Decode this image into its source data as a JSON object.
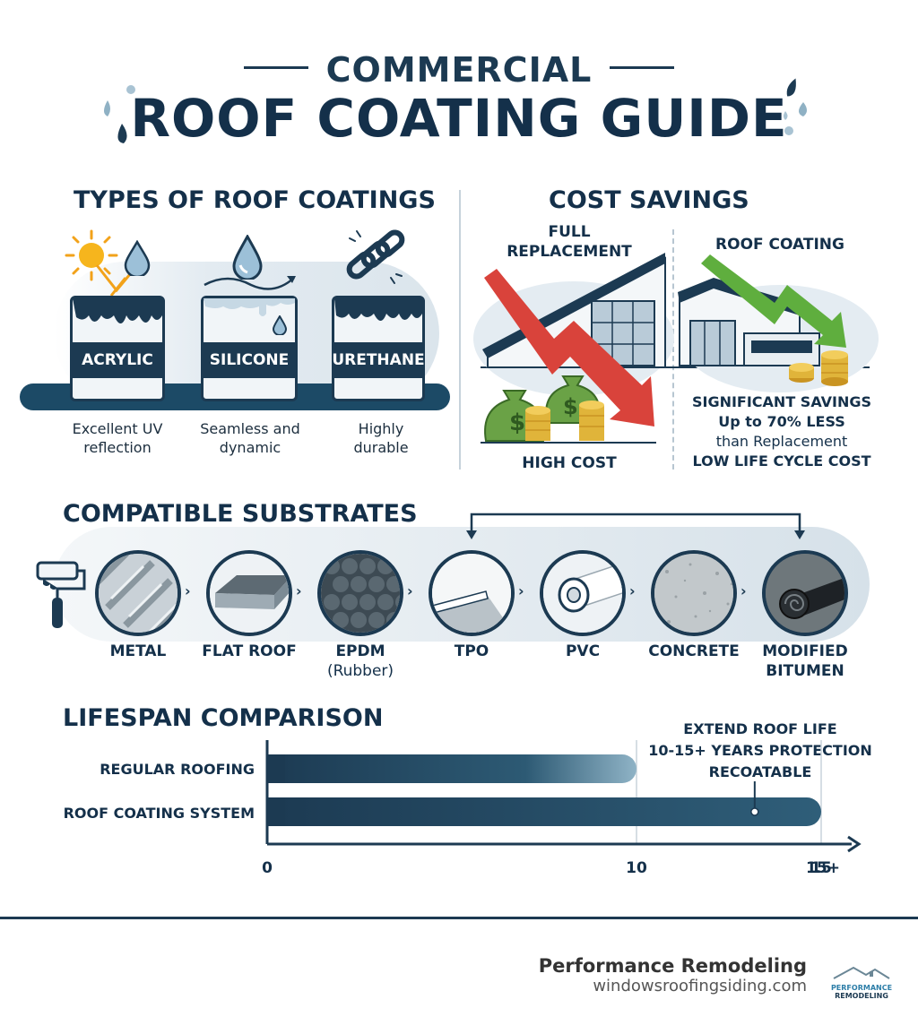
{
  "title": {
    "line1": "COMMERCIAL",
    "line2": "ROOF COATING GUIDE"
  },
  "types_section": {
    "heading": "TYPES OF ROOF COATINGS",
    "items": [
      {
        "label": "ACRYLIC",
        "caption_line1": "Excellent UV",
        "caption_line2": "reflection",
        "icon": "sun-icon"
      },
      {
        "label": "SILICONE",
        "caption_line1": "Seamless and",
        "caption_line2": "dynamic",
        "icon": "water-drop-icon"
      },
      {
        "label": "URETHANE",
        "caption_line1": "Highly",
        "caption_line2": "durable",
        "icon": "chain-link-icon"
      }
    ]
  },
  "cost_section": {
    "heading": "COST SAVINGS",
    "left_title_line1": "FULL",
    "left_title_line2": "REPLACEMENT",
    "left_caption": "HIGH COST",
    "right_title": "ROOF COATING",
    "right_line1": "SIGNIFICANT SAVINGS",
    "right_line2": "Up to 70% LESS",
    "right_line3": "than Replacement",
    "right_line4": "LOW LIFE CYCLE COST"
  },
  "substrates_section": {
    "heading": "COMPATIBLE SUBSTRATES",
    "items": [
      {
        "label": "METAL",
        "label2": ""
      },
      {
        "label": "FLAT ROOF",
        "label2": ""
      },
      {
        "label": "EPDM",
        "label2": "(Rubber)"
      },
      {
        "label": "TPO",
        "label2": ""
      },
      {
        "label": "PVC",
        "label2": ""
      },
      {
        "label": "CONCRETE",
        "label2": ""
      },
      {
        "label": "MODIFIED",
        "label2": "BITUMEN"
      }
    ]
  },
  "lifespan_section": {
    "heading": "LIFESPAN COMPARISON",
    "annotation_line1": "EXTEND ROOF LIFE",
    "annotation_line2": "10-15+ YEARS PROTECTION",
    "annotation_line3": "RECOATABLE"
  },
  "chart_data": {
    "type": "bar",
    "orientation": "horizontal",
    "categories": [
      "REGULAR ROOFING",
      "ROOF COATING SYSTEM"
    ],
    "values": [
      10,
      15
    ],
    "tick_labels": [
      "0",
      "10",
      "15",
      "15+"
    ],
    "xlim": [
      0,
      15
    ],
    "grid": true
  },
  "footer": {
    "brand": "Performance Remodeling",
    "url": "windowsroofingsiding.com",
    "logo_line1": "PERFORMANCE",
    "logo_line2": "REMODELING"
  },
  "colors": {
    "navy": "#1c3a52",
    "dark_navy": "#14304a",
    "red_arrow": "#d9433b",
    "green_arrow": "#5fae3e",
    "gold_coin": "#e0b43a",
    "money_green": "#5c9a3a"
  }
}
